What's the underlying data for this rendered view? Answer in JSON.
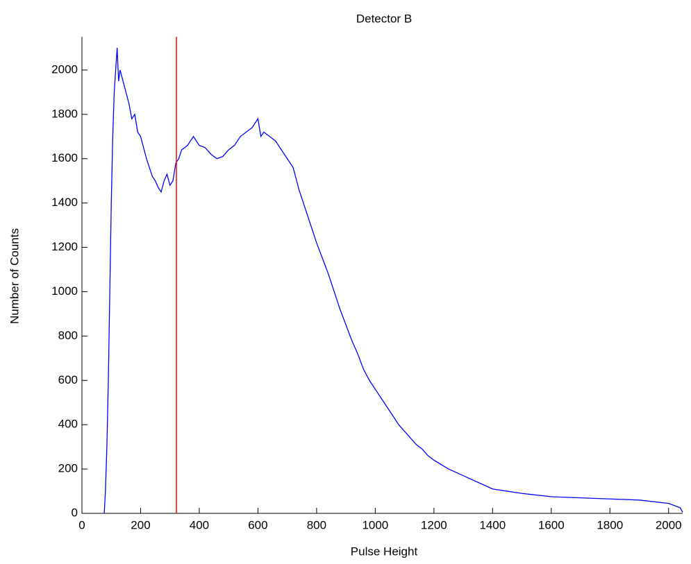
{
  "chart_data": {
    "type": "line",
    "title": "Detector B",
    "x_label": "Pulse Height",
    "y_label": "Number of Counts",
    "xlim": [
      0,
      2048
    ],
    "ylim": [
      0,
      2150
    ],
    "xticks": [
      0,
      200,
      400,
      600,
      800,
      1000,
      1200,
      1400,
      1600,
      1800,
      2000
    ],
    "yticks": [
      0,
      200,
      400,
      600,
      800,
      1000,
      1200,
      1400,
      1600,
      1800,
      2000
    ],
    "x": [
      76,
      80,
      85,
      90,
      95,
      100,
      105,
      110,
      115,
      120,
      125,
      130,
      140,
      150,
      160,
      170,
      180,
      190,
      200,
      210,
      220,
      230,
      240,
      250,
      260,
      270,
      280,
      290,
      300,
      310,
      320,
      330,
      340,
      360,
      380,
      400,
      420,
      440,
      460,
      480,
      500,
      520,
      540,
      560,
      580,
      600,
      610,
      620,
      640,
      660,
      680,
      700,
      720,
      740,
      760,
      780,
      800,
      820,
      840,
      860,
      880,
      900,
      920,
      940,
      960,
      980,
      1000,
      1020,
      1040,
      1060,
      1080,
      1100,
      1120,
      1140,
      1160,
      1180,
      1200,
      1250,
      1300,
      1350,
      1400,
      1450,
      1500,
      1600,
      1700,
      1800,
      1900,
      2000,
      2040,
      2048
    ],
    "series": [
      {
        "name": "Detector B",
        "color": "#0000ff",
        "values": [
          0,
          100,
          300,
          600,
          1000,
          1400,
          1700,
          1900,
          2000,
          2100,
          1950,
          2000,
          1950,
          1900,
          1850,
          1780,
          1800,
          1720,
          1700,
          1650,
          1600,
          1560,
          1520,
          1500,
          1470,
          1450,
          1500,
          1530,
          1480,
          1500,
          1580,
          1600,
          1640,
          1660,
          1700,
          1660,
          1650,
          1620,
          1600,
          1610,
          1640,
          1660,
          1700,
          1720,
          1740,
          1780,
          1700,
          1720,
          1700,
          1680,
          1640,
          1600,
          1560,
          1460,
          1380,
          1300,
          1220,
          1150,
          1080,
          1000,
          920,
          850,
          780,
          720,
          650,
          600,
          560,
          520,
          480,
          440,
          400,
          370,
          340,
          310,
          290,
          260,
          240,
          200,
          170,
          140,
          110,
          100,
          90,
          75,
          70,
          65,
          60,
          45,
          25,
          5
        ]
      }
    ],
    "vline": {
      "x": 322,
      "color": "#ff0000"
    }
  }
}
